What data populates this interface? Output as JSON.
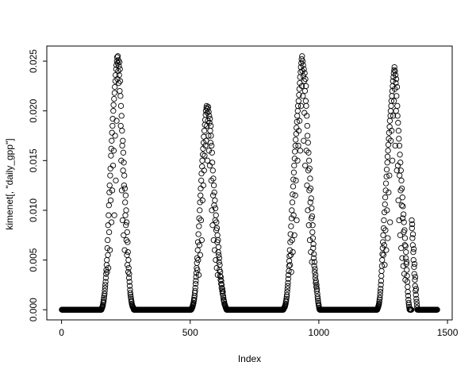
{
  "chart_data": {
    "type": "scatter",
    "title": "",
    "xlabel": "Index",
    "ylabel": "kimenet[, \"daily_gpp\"]",
    "marker": "open-circle",
    "point_color": "#000000",
    "background_color": "#ffffff",
    "grid": false,
    "n_points": 1460,
    "xlim": [
      -57.36,
      1518.36
    ],
    "ylim": [
      -0.00102,
      0.02652
    ],
    "x_ticks": [
      0,
      500,
      1000,
      1500
    ],
    "x_tick_labels": [
      "0",
      "500",
      "1000",
      "1500"
    ],
    "y_ticks": [
      0.0,
      0.005,
      0.01,
      0.015,
      0.02,
      0.025
    ],
    "y_tick_labels": [
      "0.000",
      "0.005",
      "0.010",
      "0.015",
      "0.020",
      "0.025"
    ],
    "value_scale": 0.0001,
    "zero_runs": [
      [
        1,
        155
      ],
      [
        281,
        504
      ],
      [
        641,
        862
      ],
      [
        1003,
        1227
      ],
      [
        1383,
        1460
      ]
    ],
    "seasons": [
      {
        "start": 156,
        "values": [
          1,
          2,
          2,
          3,
          4,
          5,
          7,
          8,
          10,
          12,
          14,
          16,
          19,
          22,
          25,
          28,
          32,
          36,
          40,
          45,
          50,
          38,
          62,
          70,
          55,
          85,
          42,
          95,
          105,
          78,
          118,
          125,
          60,
          135,
          142,
          110,
          155,
          162,
          88,
          170,
          178,
          120,
          185,
          192,
          145,
          200,
          206,
          160,
          212,
          95,
          218,
          224,
          175,
          230,
          236,
          130,
          242,
          246,
          190,
          250,
          254,
          232,
          248,
          255,
          240,
          251,
          228,
          245,
          236,
          249,
          220,
          242,
          230,
          215,
          185,
          205,
          150,
          195,
          120,
          180,
          165,
          90,
          170,
          140,
          158,
          75,
          148,
          125,
          135,
          60,
          122,
          108,
          95,
          115,
          85,
          100,
          70,
          88,
          55,
          78,
          45,
          68,
          58,
          38,
          50,
          42,
          32,
          36,
          28,
          24,
          20,
          17,
          15,
          13,
          11,
          9,
          8,
          6,
          5,
          4,
          3,
          3,
          2,
          2,
          1
        ]
      },
      {
        "start": 505,
        "values": [
          1,
          1,
          2,
          2,
          3,
          4,
          5,
          6,
          7,
          9,
          10,
          12,
          14,
          17,
          19,
          22,
          26,
          29,
          33,
          37,
          42,
          47,
          52,
          40,
          60,
          68,
          50,
          76,
          35,
          84,
          92,
          65,
          100,
          108,
          55,
          115,
          122,
          90,
          130,
          137,
          70,
          144,
          150,
          110,
          156,
          162,
          125,
          168,
          174,
          140,
          180,
          155,
          186,
          191,
          165,
          196,
          200,
          170,
          203,
          205,
          185,
          198,
          150,
          202,
          190,
          204,
          175,
          199,
          160,
          195,
          188,
          145,
          192,
          180,
          168,
          185,
          175,
          130,
          165,
          100,
          158,
          148,
          85,
          140,
          115,
          132,
          70,
          125,
          105,
          118,
          60,
          110,
          90,
          102,
          50,
          95,
          80,
          88,
          42,
          82,
          68,
          75,
          35,
          70,
          58,
          63,
          55,
          48,
          52,
          40,
          45,
          34,
          38,
          30,
          33,
          26,
          29,
          22,
          25,
          19,
          21,
          16,
          18,
          14,
          12,
          10,
          9,
          8,
          6,
          5,
          5,
          4,
          3,
          2,
          2,
          1
        ]
      },
      {
        "start": 863,
        "values": [
          1,
          1,
          2,
          2,
          3,
          3,
          4,
          5,
          6,
          8,
          9,
          11,
          13,
          15,
          18,
          21,
          24,
          27,
          31,
          35,
          39,
          44,
          49,
          54,
          60,
          45,
          68,
          76,
          55,
          84,
          38,
          92,
          100,
          70,
          108,
          116,
          58,
          124,
          131,
          95,
          138,
          145,
          75,
          152,
          159,
          115,
          165,
          171,
          130,
          177,
          183,
          90,
          189,
          195,
          150,
          200,
          205,
          165,
          210,
          180,
          216,
          222,
          190,
          228,
          234,
          160,
          239,
          244,
          205,
          248,
          252,
          225,
          255,
          240,
          250,
          215,
          246,
          235,
          170,
          242,
          230,
          198,
          238,
          220,
          145,
          232,
          210,
          225,
          205,
          160,
          195,
          125,
          185,
          175,
          100,
          168,
          140,
          158,
          85,
          150,
          120,
          142,
          70,
          132,
          108,
          122,
          58,
          112,
          92,
          102,
          48,
          94,
          78,
          85,
          72,
          62,
          66,
          52,
          56,
          44,
          48,
          38,
          41,
          32,
          35,
          27,
          29,
          23,
          25,
          19,
          21,
          16,
          13,
          11,
          9,
          7,
          5,
          4,
          2,
          1
        ]
      },
      {
        "start": 1228,
        "values": [
          1,
          2,
          2,
          3,
          4,
          5,
          6,
          8,
          10,
          12,
          15,
          18,
          21,
          25,
          29,
          34,
          39,
          44,
          50,
          56,
          62,
          68,
          75,
          55,
          82,
          90,
          65,
          98,
          45,
          106,
          113,
          80,
          120,
          127,
          60,
          134,
          141,
          100,
          148,
          154,
          72,
          160,
          166,
          118,
          172,
          178,
          135,
          184,
          190,
          88,
          195,
          200,
          170,
          205,
          210,
          180,
          215,
          220,
          150,
          225,
          230,
          195,
          234,
          238,
          210,
          241,
          244,
          222,
          240,
          165,
          236,
          228,
          200,
          232,
          215,
          140,
          224,
          205,
          195,
          145,
          188,
          110,
          180,
          172,
          90,
          165,
          135,
          156,
          75,
          148,
          120,
          140,
          62,
          130,
          105,
          122,
          52,
          113,
          92,
          104,
          44,
          96,
          78,
          88,
          36,
          80,
          65,
          72,
          30,
          64,
          52,
          58,
          46,
          48,
          40,
          34,
          28,
          23,
          18,
          14,
          10,
          7,
          5,
          3,
          1,
          0,
          0,
          0,
          0,
          0,
          0,
          0,
          0,
          90,
          82,
          86,
          72,
          65,
          76,
          58,
          50,
          61,
          43,
          36,
          46,
          30,
          24,
          33,
          19,
          15,
          21,
          11,
          8,
          5,
          2
        ]
      }
    ]
  }
}
